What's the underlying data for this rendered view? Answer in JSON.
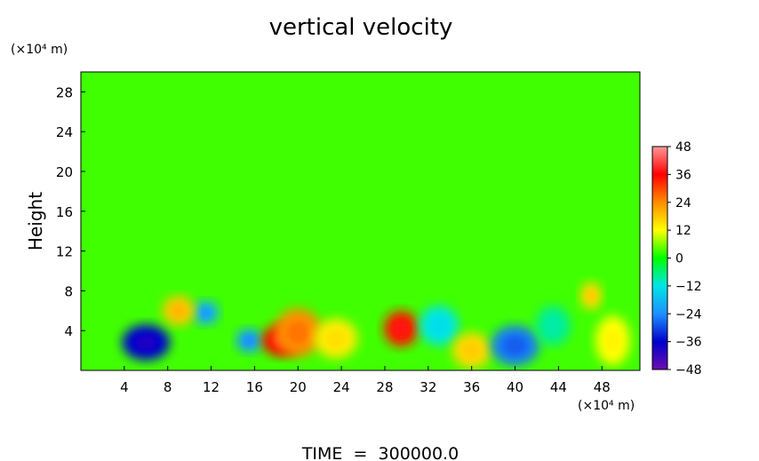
{
  "chart_data": {
    "type": "heatmap",
    "title": "vertical velocity",
    "ylabel": "Height",
    "x_unit": "(×10⁴ m)",
    "y_unit": "(×10⁴ m)",
    "footer": "TIME  =  300000.0",
    "xlim": [
      0,
      51.5
    ],
    "ylim": [
      0,
      30
    ],
    "x_ticks": [
      4,
      8,
      12,
      16,
      20,
      24,
      28,
      32,
      36,
      40,
      44,
      48
    ],
    "y_ticks": [
      4,
      8,
      12,
      16,
      20,
      24,
      28
    ],
    "colorbar": {
      "min": -48,
      "max": 48,
      "ticks": [
        48,
        36,
        24,
        12,
        0,
        -12,
        -24,
        -36,
        -48
      ],
      "stops": [
        "#6a0dad",
        "#0000cd",
        "#1e90ff",
        "#00e5e5",
        "#00ff00",
        "#ffff00",
        "#ff8c00",
        "#ff0000",
        "#ff9999"
      ]
    },
    "background_value": 3,
    "features": [
      {
        "x": 6,
        "y": 2.8,
        "value": -36,
        "rx": 2.2,
        "ry": 1.8
      },
      {
        "x": 11.5,
        "y": 5.8,
        "value": -20,
        "rx": 1.2,
        "ry": 1.2
      },
      {
        "x": 15.5,
        "y": 3,
        "value": -22,
        "rx": 1.2,
        "ry": 1.2
      },
      {
        "x": 9,
        "y": 6,
        "value": 18,
        "rx": 1.5,
        "ry": 1.5
      },
      {
        "x": 18.5,
        "y": 3,
        "value": 36,
        "rx": 1.8,
        "ry": 1.6
      },
      {
        "x": 20,
        "y": 3.8,
        "value": 24,
        "rx": 2.2,
        "ry": 2.4
      },
      {
        "x": 29.5,
        "y": 4.2,
        "value": 34,
        "rx": 1.6,
        "ry": 1.8
      },
      {
        "x": 23.5,
        "y": 3.2,
        "value": 14,
        "rx": 2,
        "ry": 2
      },
      {
        "x": 33,
        "y": 4.5,
        "value": -12,
        "rx": 1.8,
        "ry": 2
      },
      {
        "x": 36,
        "y": 2,
        "value": 16,
        "rx": 1.8,
        "ry": 1.8
      },
      {
        "x": 40,
        "y": 2.5,
        "value": -26,
        "rx": 2.2,
        "ry": 2
      },
      {
        "x": 43.5,
        "y": 4.5,
        "value": -8,
        "rx": 1.6,
        "ry": 2
      },
      {
        "x": 47,
        "y": 7.5,
        "value": 16,
        "rx": 1,
        "ry": 1.4
      },
      {
        "x": 49,
        "y": 3,
        "value": 12,
        "rx": 1.6,
        "ry": 2.5
      }
    ]
  }
}
